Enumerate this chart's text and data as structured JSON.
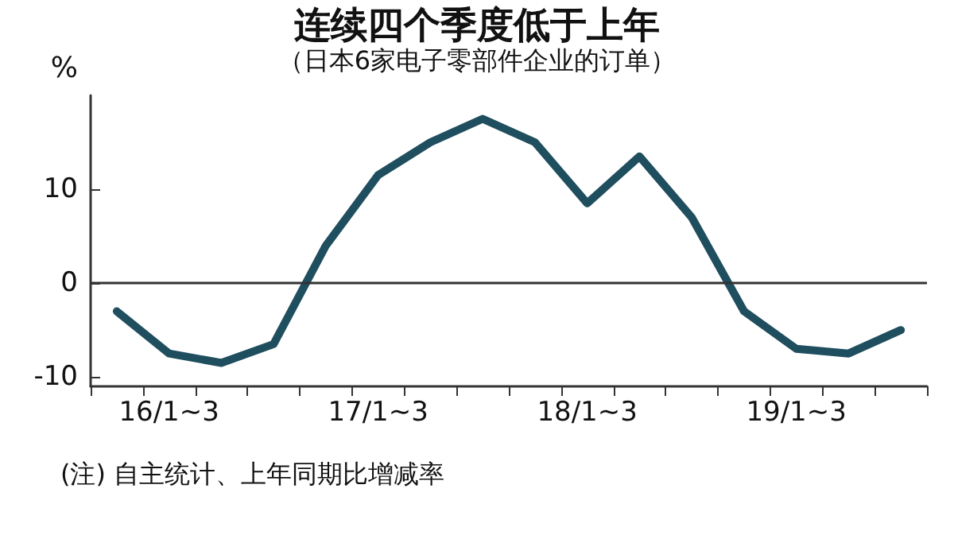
{
  "chart_data": {
    "type": "line",
    "title": "连续四个季度低于上年",
    "subtitle": "（日本6家电子零部件企业的订单）",
    "ylabel": "%",
    "annotations": [
      "(注) 自主统计、上年同期比增减率"
    ],
    "categories": [
      null,
      "16/1~3",
      null,
      null,
      null,
      "17/1~3",
      null,
      null,
      null,
      "18/1~3",
      null,
      null,
      null,
      "19/1~3",
      null,
      null
    ],
    "series": [
      {
        "color": "#1f4e5f",
        "values": [
          -3,
          -7.5,
          -8.5,
          -6.5,
          4,
          11.5,
          15,
          17.5,
          15,
          8.5,
          13.5,
          7,
          -3,
          -7,
          -7.5,
          -5
        ]
      }
    ],
    "ylim": [
      -11,
      20
    ],
    "yticks": [
      -10,
      0,
      10
    ],
    "grid": false,
    "marker": "none",
    "line_style": "solid",
    "ref_lines": [
      {
        "axis": "y",
        "value": 0,
        "color": "#333333"
      }
    ]
  }
}
